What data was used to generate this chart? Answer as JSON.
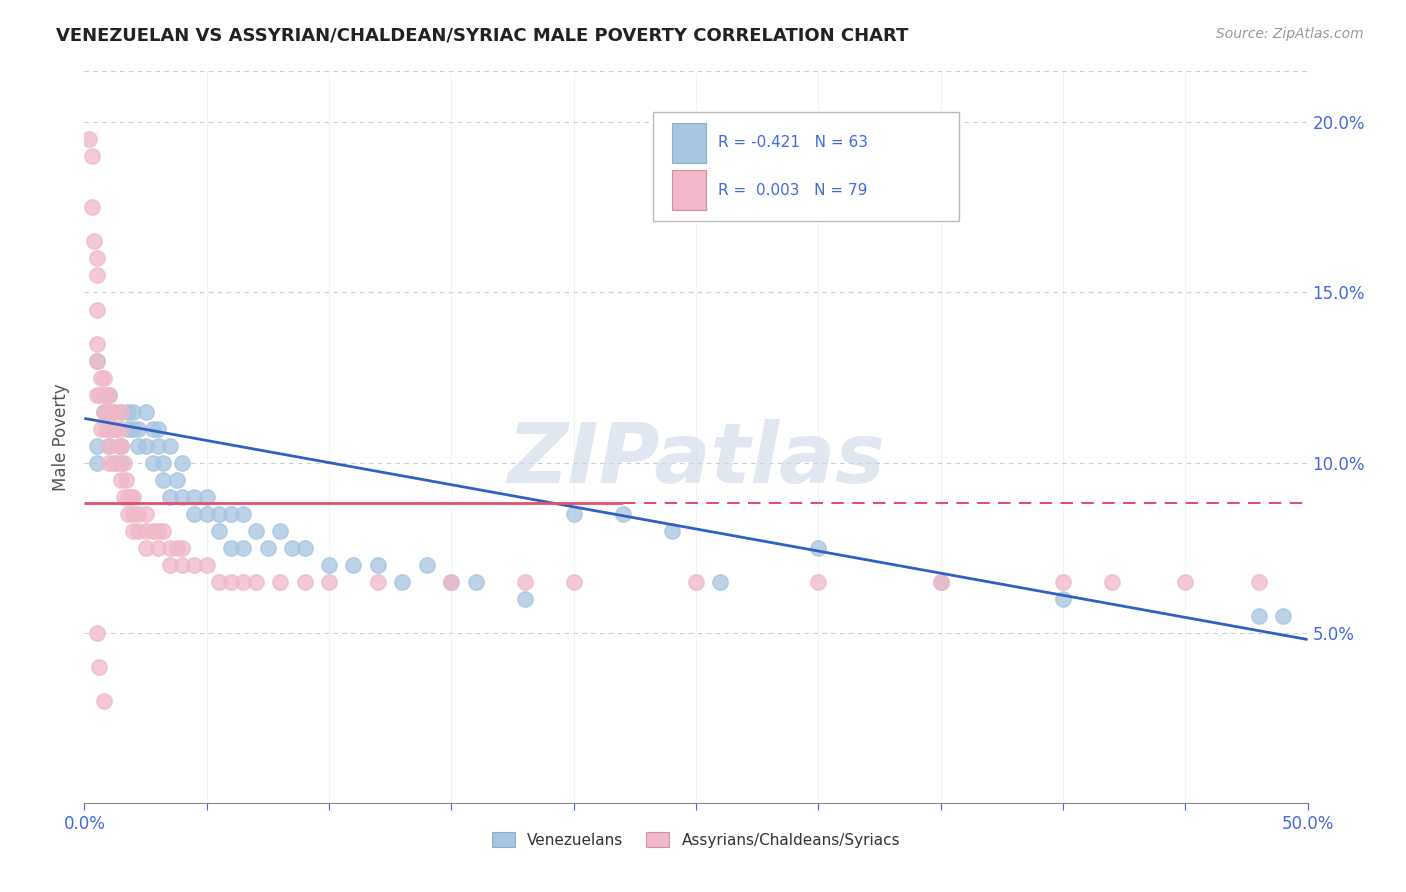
{
  "title": "VENEZUELAN VS ASSYRIAN/CHALDEAN/SYRIAC MALE POVERTY CORRELATION CHART",
  "source_text": "Source: ZipAtlas.com",
  "ylabel": "Male Poverty",
  "xlim": [
    0.0,
    0.5
  ],
  "ylim": [
    0.0,
    0.215
  ],
  "xticks": [
    0.0,
    0.05,
    0.1,
    0.15,
    0.2,
    0.25,
    0.3,
    0.35,
    0.4,
    0.45,
    0.5
  ],
  "yticks_right": [
    0.05,
    0.1,
    0.15,
    0.2
  ],
  "ytick_right_labels": [
    "5.0%",
    "10.0%",
    "15.0%",
    "20.0%"
  ],
  "blue_color": "#a8c4e0",
  "pink_color": "#f0b8c8",
  "blue_line_color": "#3060c0",
  "pink_line_color": "#e05070",
  "watermark": "ZIPatlas",
  "background_color": "#ffffff",
  "venezuelan_x": [
    0.005,
    0.005,
    0.005,
    0.008,
    0.01,
    0.01,
    0.01,
    0.012,
    0.012,
    0.015,
    0.015,
    0.015,
    0.018,
    0.018,
    0.02,
    0.02,
    0.022,
    0.022,
    0.025,
    0.025,
    0.028,
    0.028,
    0.03,
    0.03,
    0.032,
    0.032,
    0.035,
    0.035,
    0.038,
    0.04,
    0.04,
    0.045,
    0.045,
    0.05,
    0.05,
    0.055,
    0.055,
    0.06,
    0.06,
    0.065,
    0.065,
    0.07,
    0.075,
    0.08,
    0.085,
    0.09,
    0.1,
    0.11,
    0.12,
    0.13,
    0.14,
    0.15,
    0.16,
    0.18,
    0.2,
    0.22,
    0.24,
    0.26,
    0.3,
    0.35,
    0.4,
    0.48,
    0.49
  ],
  "venezuelan_y": [
    0.13,
    0.105,
    0.1,
    0.115,
    0.12,
    0.115,
    0.105,
    0.115,
    0.11,
    0.115,
    0.105,
    0.1,
    0.115,
    0.11,
    0.115,
    0.11,
    0.11,
    0.105,
    0.115,
    0.105,
    0.11,
    0.1,
    0.11,
    0.105,
    0.1,
    0.095,
    0.105,
    0.09,
    0.095,
    0.1,
    0.09,
    0.09,
    0.085,
    0.09,
    0.085,
    0.085,
    0.08,
    0.085,
    0.075,
    0.085,
    0.075,
    0.08,
    0.075,
    0.08,
    0.075,
    0.075,
    0.07,
    0.07,
    0.07,
    0.065,
    0.07,
    0.065,
    0.065,
    0.06,
    0.085,
    0.085,
    0.08,
    0.065,
    0.075,
    0.065,
    0.06,
    0.055,
    0.055
  ],
  "assyrian_x": [
    0.002,
    0.003,
    0.003,
    0.004,
    0.005,
    0.005,
    0.005,
    0.005,
    0.005,
    0.005,
    0.006,
    0.007,
    0.007,
    0.008,
    0.008,
    0.008,
    0.009,
    0.009,
    0.01,
    0.01,
    0.01,
    0.01,
    0.01,
    0.012,
    0.012,
    0.012,
    0.013,
    0.013,
    0.014,
    0.015,
    0.015,
    0.015,
    0.015,
    0.016,
    0.016,
    0.017,
    0.018,
    0.018,
    0.019,
    0.02,
    0.02,
    0.02,
    0.022,
    0.022,
    0.025,
    0.025,
    0.025,
    0.028,
    0.03,
    0.03,
    0.032,
    0.035,
    0.035,
    0.038,
    0.04,
    0.04,
    0.045,
    0.05,
    0.055,
    0.06,
    0.065,
    0.07,
    0.08,
    0.09,
    0.1,
    0.12,
    0.15,
    0.18,
    0.2,
    0.25,
    0.3,
    0.35,
    0.4,
    0.42,
    0.45,
    0.48,
    0.005,
    0.006,
    0.008
  ],
  "assyrian_y": [
    0.195,
    0.19,
    0.175,
    0.165,
    0.16,
    0.155,
    0.145,
    0.135,
    0.13,
    0.12,
    0.12,
    0.125,
    0.11,
    0.125,
    0.12,
    0.115,
    0.12,
    0.11,
    0.12,
    0.115,
    0.11,
    0.105,
    0.1,
    0.115,
    0.11,
    0.1,
    0.11,
    0.1,
    0.105,
    0.115,
    0.11,
    0.105,
    0.095,
    0.1,
    0.09,
    0.095,
    0.09,
    0.085,
    0.09,
    0.09,
    0.085,
    0.08,
    0.085,
    0.08,
    0.085,
    0.08,
    0.075,
    0.08,
    0.08,
    0.075,
    0.08,
    0.075,
    0.07,
    0.075,
    0.075,
    0.07,
    0.07,
    0.07,
    0.065,
    0.065,
    0.065,
    0.065,
    0.065,
    0.065,
    0.065,
    0.065,
    0.065,
    0.065,
    0.065,
    0.065,
    0.065,
    0.065,
    0.065,
    0.065,
    0.065,
    0.065,
    0.05,
    0.04,
    0.03
  ],
  "ven_line_x0": 0.0,
  "ven_line_y0": 0.113,
  "ven_line_x1": 0.5,
  "ven_line_y1": 0.048,
  "ass_line_x0": 0.0,
  "ass_line_y0": 0.088,
  "ass_line_x1": 0.5,
  "ass_line_y1": 0.088,
  "ass_line_solid_end": 0.22,
  "ass_line_dash_start": 0.22
}
